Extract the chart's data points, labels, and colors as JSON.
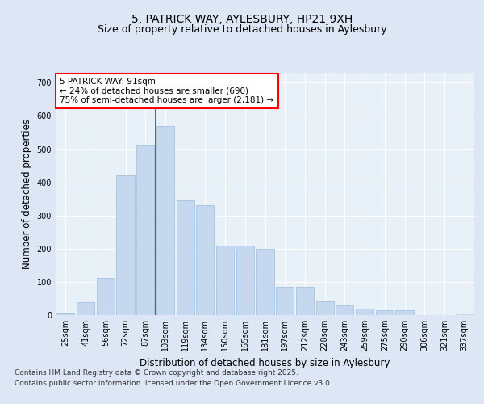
{
  "title_line1": "5, PATRICK WAY, AYLESBURY, HP21 9XH",
  "title_line2": "Size of property relative to detached houses in Aylesbury",
  "xlabel": "Distribution of detached houses by size in Aylesbury",
  "ylabel": "Number of detached properties",
  "categories": [
    "25sqm",
    "41sqm",
    "56sqm",
    "72sqm",
    "87sqm",
    "103sqm",
    "119sqm",
    "134sqm",
    "150sqm",
    "165sqm",
    "181sqm",
    "197sqm",
    "212sqm",
    "228sqm",
    "243sqm",
    "259sqm",
    "275sqm",
    "290sqm",
    "306sqm",
    "321sqm",
    "337sqm"
  ],
  "values": [
    8,
    38,
    112,
    420,
    510,
    570,
    345,
    330,
    210,
    210,
    200,
    85,
    85,
    42,
    28,
    20,
    15,
    15,
    0,
    0,
    5
  ],
  "bar_color": "#c5d8ef",
  "bar_edge_color": "#9bbcd8",
  "vline_x_index": 4,
  "vline_color": "red",
  "annotation_text": "5 PATRICK WAY: 91sqm\n← 24% of detached houses are smaller (690)\n75% of semi-detached houses are larger (2,181) →",
  "annotation_box_color": "white",
  "annotation_box_edge_color": "red",
  "background_color": "#dce6f5",
  "plot_background_color": "#e8f0f8",
  "grid_color": "white",
  "yticks": [
    0,
    100,
    200,
    300,
    400,
    500,
    600,
    700
  ],
  "ylim": [
    0,
    730
  ],
  "footer_line1": "Contains HM Land Registry data © Crown copyright and database right 2025.",
  "footer_line2": "Contains public sector information licensed under the Open Government Licence v3.0.",
  "title_fontsize": 10,
  "subtitle_fontsize": 9,
  "axis_label_fontsize": 8.5,
  "tick_fontsize": 7,
  "annotation_fontsize": 7.5,
  "footer_fontsize": 6.5
}
